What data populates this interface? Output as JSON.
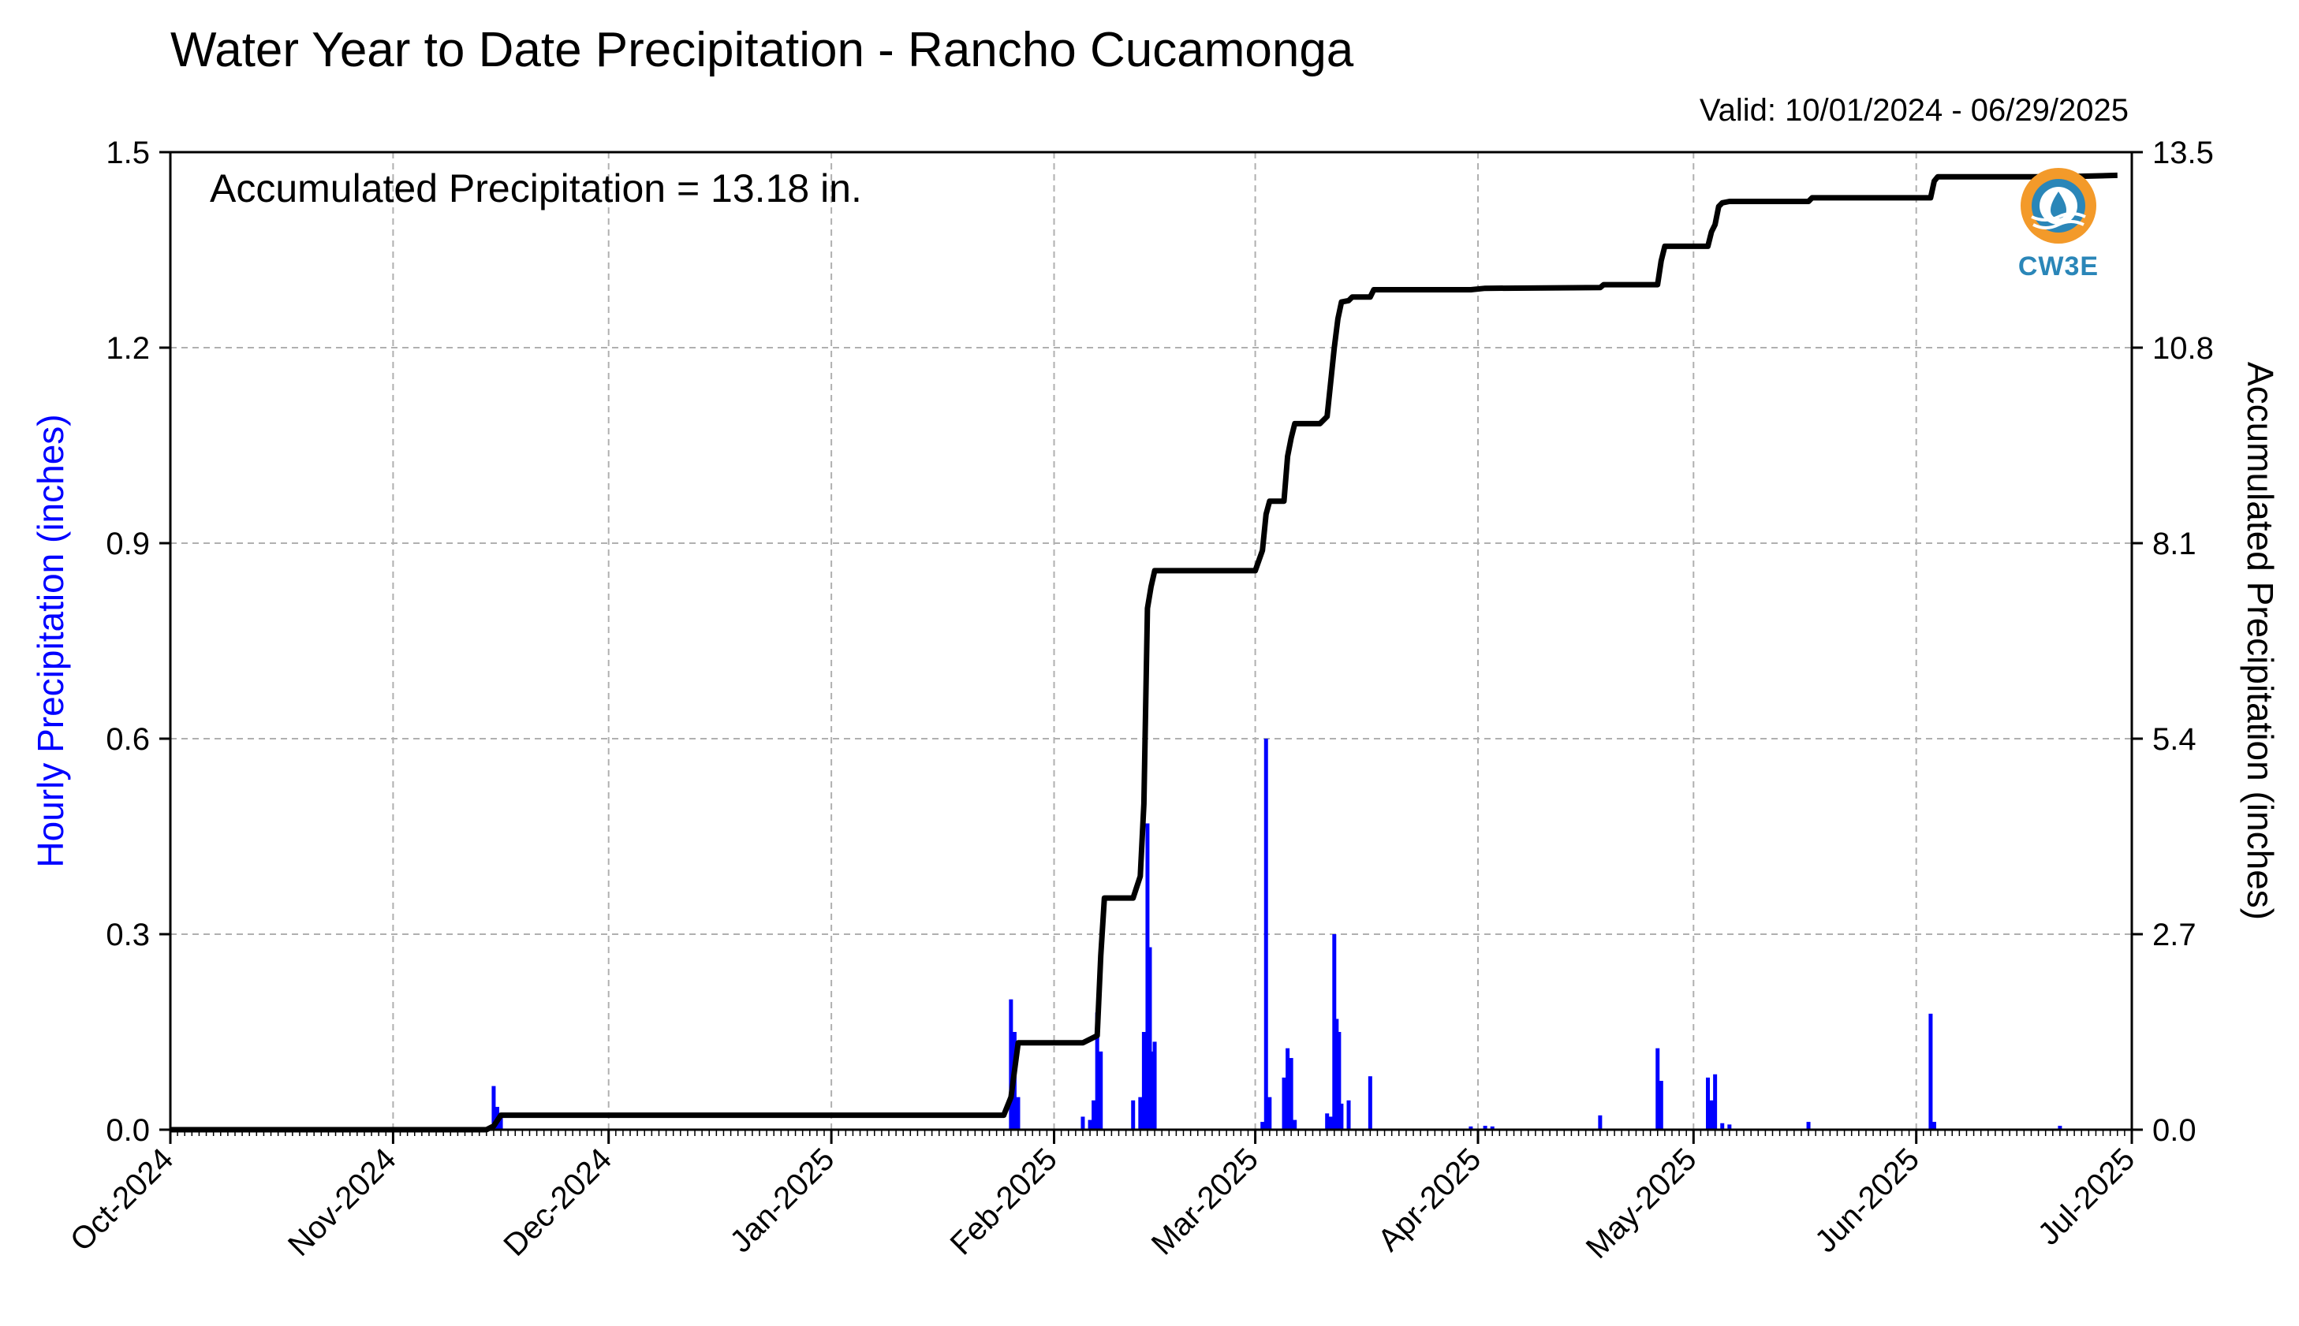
{
  "title": "Water Year to Date Precipitation - Rancho Cucamonga",
  "valid_text": "Valid: 10/01/2024 - 06/29/2025",
  "annotation": "Accumulated Precipitation = 13.18 in.",
  "logo_text": "CW3E",
  "colors": {
    "hourly": "#0000ff",
    "accumulated": "#000000",
    "grid": "#b0b0b0",
    "logo_orange": "#f39a2a",
    "logo_blue": "#2a86b8"
  },
  "chart_data": {
    "type": "bar",
    "x_axis": {
      "range": [
        "2024-10-01",
        "2025-07-01"
      ],
      "tick_labels": [
        "Oct-2024",
        "Nov-2024",
        "Dec-2024",
        "Jan-2025",
        "Feb-2025",
        "Mar-2025",
        "Apr-2025",
        "May-2025",
        "Jun-2025",
        "Jul-2025"
      ],
      "tick_dates": [
        "2024-10-01",
        "2024-11-01",
        "2024-12-01",
        "2025-01-01",
        "2025-02-01",
        "2025-03-01",
        "2025-04-01",
        "2025-05-01",
        "2025-06-01",
        "2025-07-01"
      ]
    },
    "y_left": {
      "label": "Hourly Precipitation (inches)",
      "range": [
        0,
        1.5
      ],
      "ticks": [
        "0.0",
        "0.3",
        "0.6",
        "0.9",
        "1.2",
        "1.5"
      ]
    },
    "y_right": {
      "label": "Accumulated Precipitation (inches)",
      "range": [
        0,
        13.5
      ],
      "ticks": [
        "0.0",
        "2.7",
        "5.4",
        "8.1",
        "10.8",
        "13.5"
      ]
    },
    "grid": true,
    "series": [
      {
        "type": "bar",
        "axis": "left",
        "points": [
          [
            "2024-11-15",
            0.067
          ],
          [
            "2024-11-15T12",
            0.035
          ],
          [
            "2024-11-16",
            0.02
          ],
          [
            "2025-01-26",
            0.2
          ],
          [
            "2025-01-26T12",
            0.15
          ],
          [
            "2025-01-27",
            0.05
          ],
          [
            "2025-02-05",
            0.02
          ],
          [
            "2025-02-06",
            0.015
          ],
          [
            "2025-02-06T12",
            0.045
          ],
          [
            "2025-02-07",
            0.18
          ],
          [
            "2025-02-07T12",
            0.12
          ],
          [
            "2025-02-12",
            0.045
          ],
          [
            "2025-02-13",
            0.05
          ],
          [
            "2025-02-13T12",
            0.15
          ],
          [
            "2025-02-14",
            0.47
          ],
          [
            "2025-02-14T08",
            0.28
          ],
          [
            "2025-02-14T16",
            0.12
          ],
          [
            "2025-02-15",
            0.135
          ],
          [
            "2025-03-02",
            0.012
          ],
          [
            "2025-03-02T12",
            0.6
          ],
          [
            "2025-03-03",
            0.05
          ],
          [
            "2025-03-05",
            0.08
          ],
          [
            "2025-03-05T12",
            0.125
          ],
          [
            "2025-03-06",
            0.11
          ],
          [
            "2025-03-06T12",
            0.015
          ],
          [
            "2025-03-11",
            0.025
          ],
          [
            "2025-03-11T12",
            0.02
          ],
          [
            "2025-03-12",
            0.3
          ],
          [
            "2025-03-12T08",
            0.17
          ],
          [
            "2025-03-12T16",
            0.15
          ],
          [
            "2025-03-13",
            0.04
          ],
          [
            "2025-03-14",
            0.045
          ],
          [
            "2025-03-17",
            0.082
          ],
          [
            "2025-03-31",
            0.005
          ],
          [
            "2025-04-02",
            0.006
          ],
          [
            "2025-04-03",
            0.005
          ],
          [
            "2025-04-18",
            0.022
          ],
          [
            "2025-04-26",
            0.125
          ],
          [
            "2025-04-26T12",
            0.075
          ],
          [
            "2025-05-03",
            0.08
          ],
          [
            "2025-05-03T12",
            0.045
          ],
          [
            "2025-05-04",
            0.085
          ],
          [
            "2025-05-05",
            0.01
          ],
          [
            "2025-05-06",
            0.008
          ],
          [
            "2025-05-17",
            0.012
          ],
          [
            "2025-06-03",
            0.178
          ],
          [
            "2025-06-03T12",
            0.012
          ],
          [
            "2025-06-21",
            0.006
          ]
        ]
      },
      {
        "type": "line",
        "axis": "right",
        "points": [
          [
            "2024-10-01",
            0
          ],
          [
            "2024-11-14",
            0
          ],
          [
            "2024-11-15",
            0.05
          ],
          [
            "2024-11-16",
            0.2
          ],
          [
            "2025-01-25",
            0.2
          ],
          [
            "2025-01-26",
            0.45
          ],
          [
            "2025-01-27",
            1.2
          ],
          [
            "2025-02-05",
            1.2
          ],
          [
            "2025-02-06",
            1.25
          ],
          [
            "2025-02-07",
            1.3
          ],
          [
            "2025-02-07T12",
            2.4
          ],
          [
            "2025-02-08",
            3.2
          ],
          [
            "2025-02-12",
            3.2
          ],
          [
            "2025-02-13",
            3.5
          ],
          [
            "2025-02-13T12",
            4.5
          ],
          [
            "2025-02-14",
            7.2
          ],
          [
            "2025-02-14T12",
            7.5
          ],
          [
            "2025-02-15",
            7.72
          ],
          [
            "2025-03-01",
            7.72
          ],
          [
            "2025-03-02",
            8.0
          ],
          [
            "2025-03-02T12",
            8.5
          ],
          [
            "2025-03-03",
            8.68
          ],
          [
            "2025-03-05",
            8.68
          ],
          [
            "2025-03-05T12",
            9.3
          ],
          [
            "2025-03-06",
            9.55
          ],
          [
            "2025-03-06T12",
            9.75
          ],
          [
            "2025-03-10",
            9.75
          ],
          [
            "2025-03-11",
            9.85
          ],
          [
            "2025-03-12",
            10.8
          ],
          [
            "2025-03-12T12",
            11.2
          ],
          [
            "2025-03-13",
            11.43
          ],
          [
            "2025-03-14",
            11.45
          ],
          [
            "2025-03-14T12",
            11.5
          ],
          [
            "2025-03-17",
            11.5
          ],
          [
            "2025-03-17T12",
            11.6
          ],
          [
            "2025-03-31",
            11.6
          ],
          [
            "2025-04-02",
            11.62
          ],
          [
            "2025-04-18",
            11.63
          ],
          [
            "2025-04-18T12",
            11.67
          ],
          [
            "2025-04-26",
            11.67
          ],
          [
            "2025-04-26T12",
            12.0
          ],
          [
            "2025-04-27",
            12.2
          ],
          [
            "2025-05-03",
            12.2
          ],
          [
            "2025-05-03T12",
            12.4
          ],
          [
            "2025-05-04",
            12.5
          ],
          [
            "2025-05-04T12",
            12.75
          ],
          [
            "2025-05-05",
            12.8
          ],
          [
            "2025-05-06",
            12.82
          ],
          [
            "2025-05-17",
            12.82
          ],
          [
            "2025-05-17T12",
            12.87
          ],
          [
            "2025-06-03",
            12.87
          ],
          [
            "2025-06-03T12",
            13.1
          ],
          [
            "2025-06-04",
            13.16
          ],
          [
            "2025-06-21",
            13.16
          ],
          [
            "2025-06-29",
            13.18
          ]
        ]
      }
    ]
  }
}
